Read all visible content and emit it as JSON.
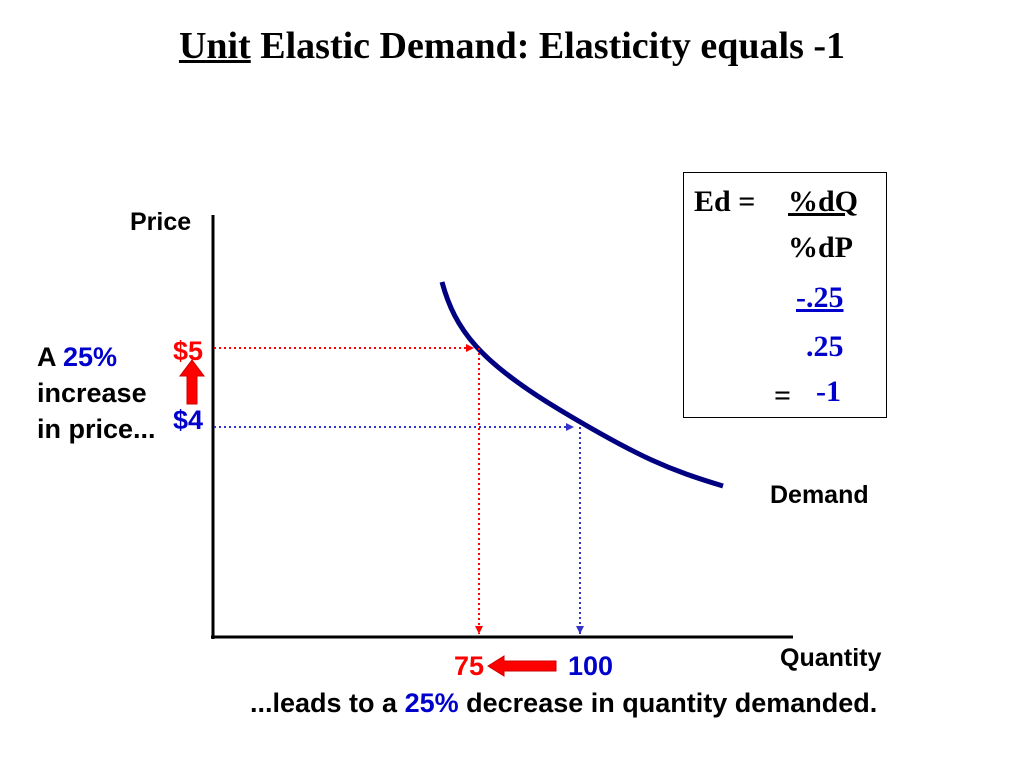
{
  "title": {
    "underlined": "Unit",
    "rest": " Elastic Demand: Elasticity equals -1"
  },
  "axes": {
    "y_label": "Price",
    "x_label": "Quantity"
  },
  "curve_label": "Demand",
  "prices": {
    "high": "$5",
    "low": "$4"
  },
  "quantities": {
    "low": "75",
    "high": "100"
  },
  "left_note": {
    "a": "A",
    "pct": "25%",
    "line2": "increase",
    "line3": "in price..."
  },
  "bottom_note": {
    "pre": "...leads to a",
    "pct": "25%",
    "post": "decrease in quantity demanded."
  },
  "formula": {
    "lhs": "Ed =",
    "numerator": "%dQ",
    "denominator": "%dP",
    "num_value": "-.25",
    "den_value": ".25",
    "equals": "=",
    "result": "-1"
  },
  "colors": {
    "curve": "#000080",
    "red": "#ff0000",
    "blue": "#0000cc",
    "text": "#000000"
  },
  "chart_data": {
    "type": "line",
    "series": [
      {
        "name": "Demand",
        "points": [
          [
            75,
            5
          ],
          [
            100,
            4
          ]
        ]
      }
    ],
    "xlabel": "Quantity",
    "ylabel": "Price"
  }
}
